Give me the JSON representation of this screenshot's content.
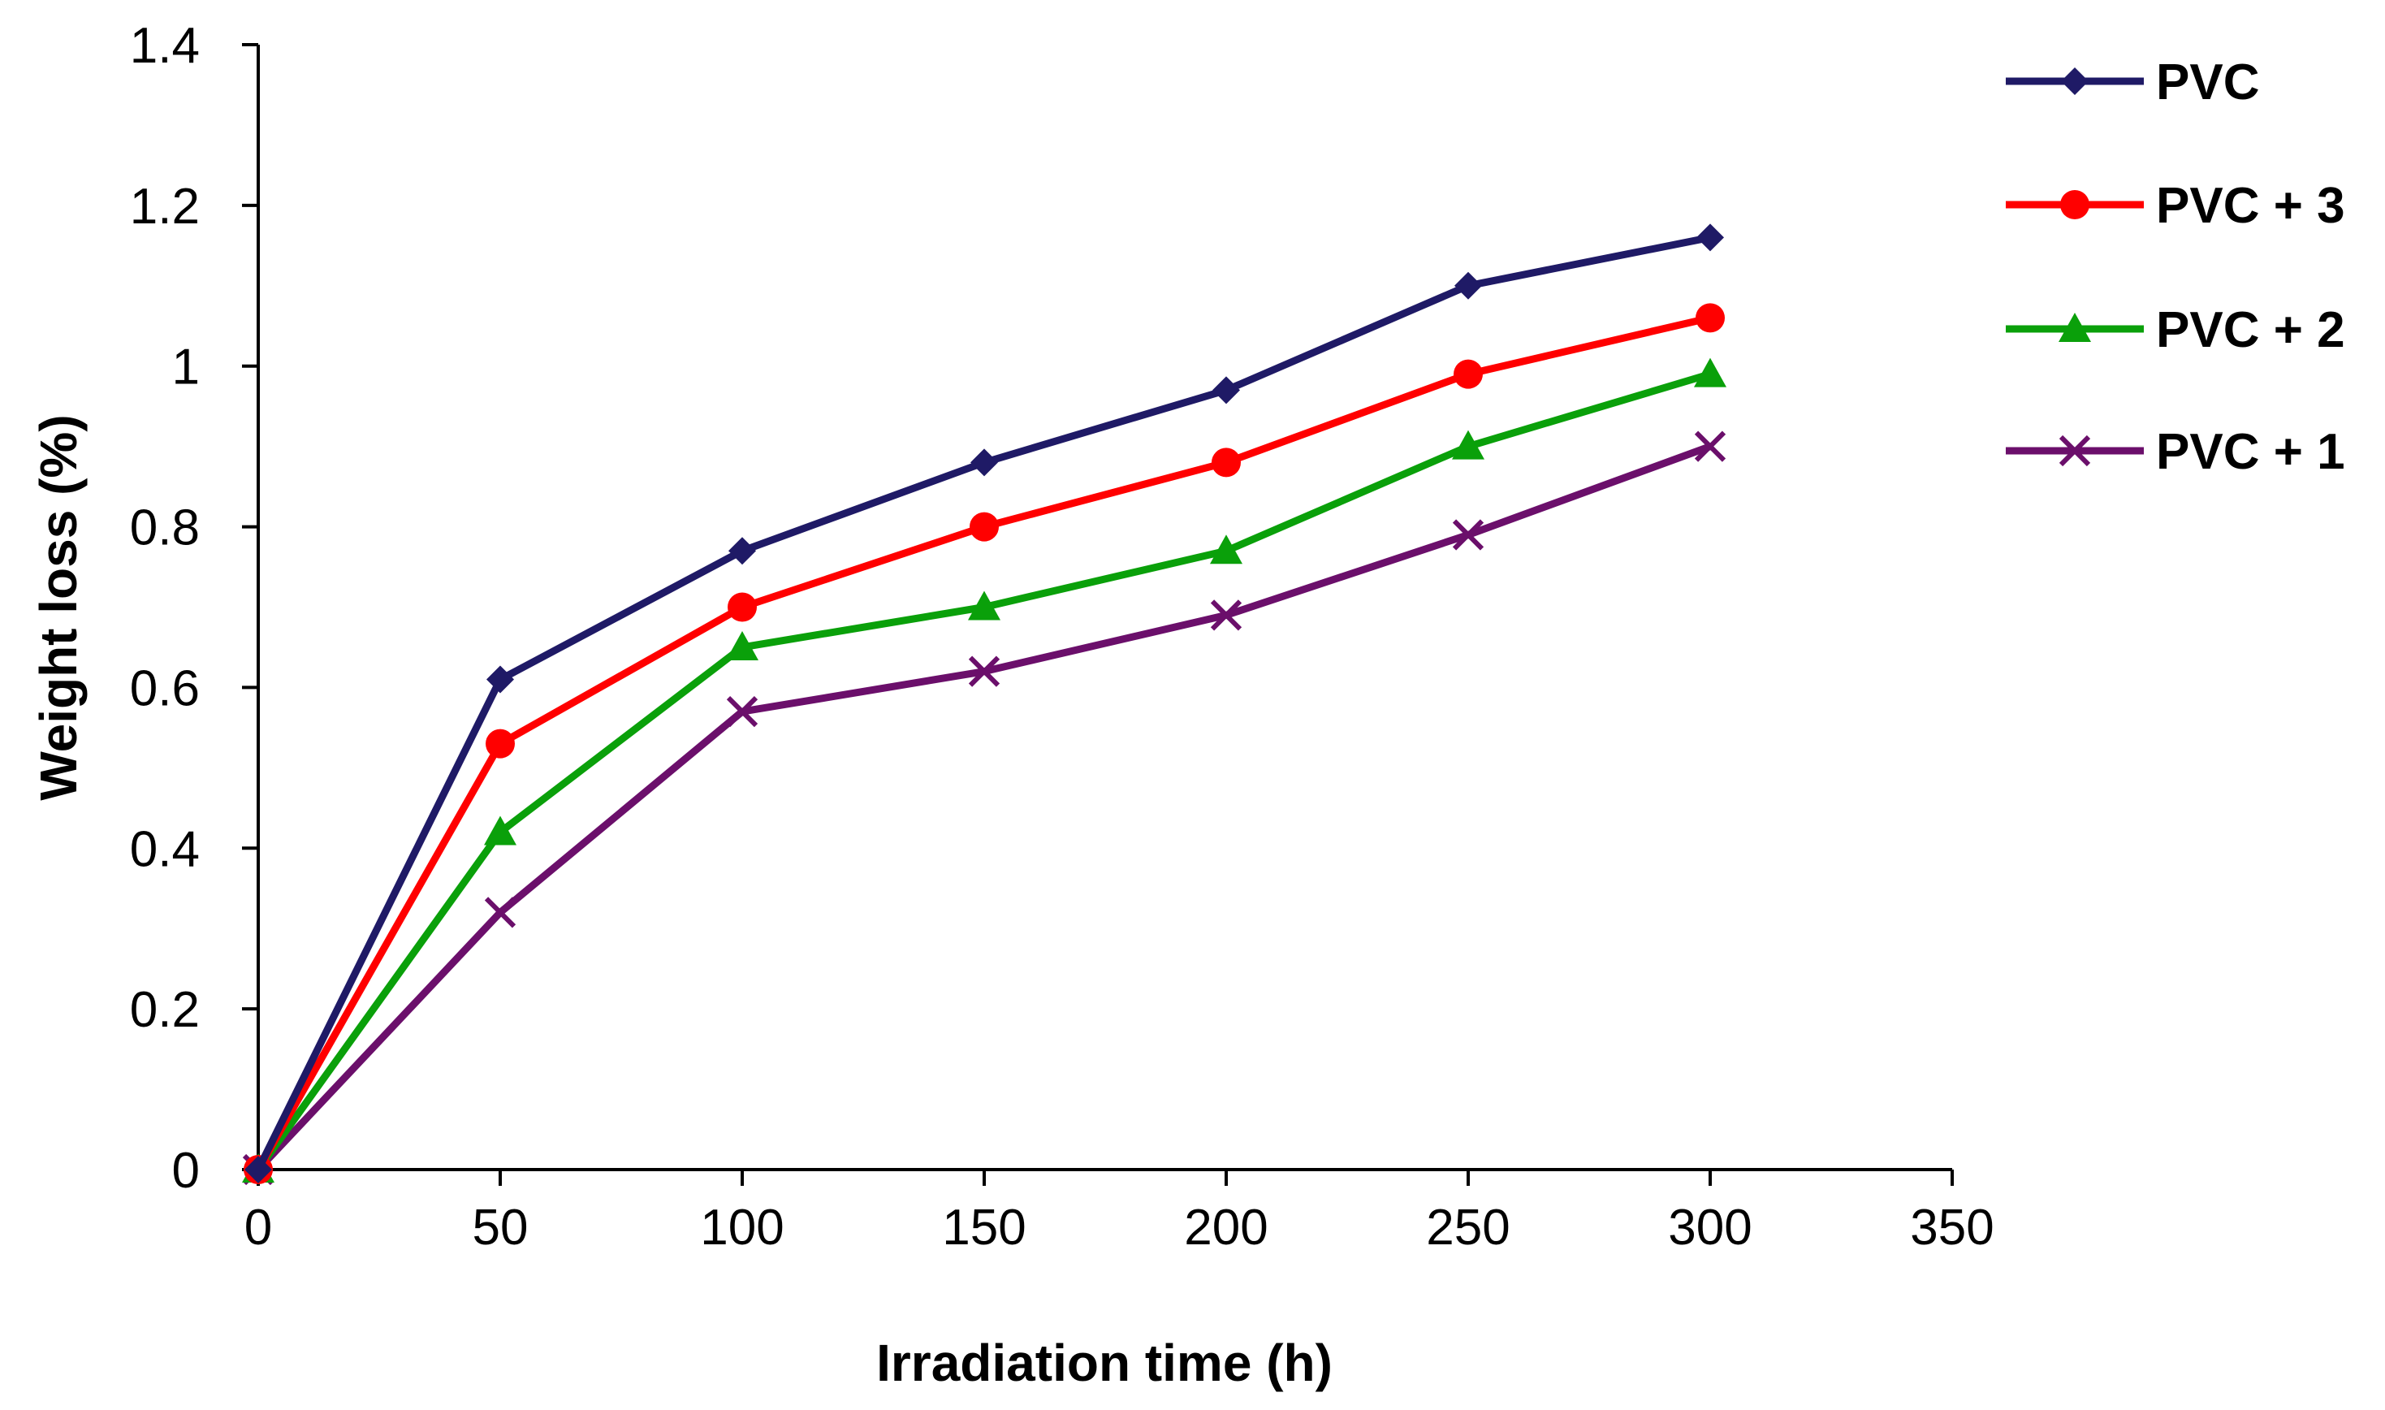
{
  "chart_data": {
    "type": "line",
    "title": "",
    "xlabel": "Irradiation time (h)",
    "ylabel": "Weight loss (%)",
    "xlim": [
      0,
      350
    ],
    "ylim": [
      0,
      1.4
    ],
    "xticks": [
      0,
      50,
      100,
      150,
      200,
      250,
      300,
      350
    ],
    "yticks": [
      0,
      0.2,
      0.4,
      0.6,
      0.8,
      1,
      1.2,
      1.4
    ],
    "xtick_labels": [
      "0",
      "50",
      "100",
      "150",
      "200",
      "250",
      "300",
      "350"
    ],
    "ytick_labels": [
      "0",
      "0.2",
      "0.4",
      "0.6",
      "0.8",
      "1",
      "1.2",
      "1.4"
    ],
    "grid": false,
    "legend_position": "right",
    "x": [
      0,
      50,
      100,
      150,
      200,
      250,
      300
    ],
    "series": [
      {
        "name": "PVC",
        "color": "#1f1a66",
        "marker": "diamond",
        "values": [
          0,
          0.61,
          0.77,
          0.88,
          0.97,
          1.1,
          1.16
        ]
      },
      {
        "name": "PVC + 3",
        "color": "#ff0000",
        "marker": "circle",
        "values": [
          0,
          0.53,
          0.7,
          0.8,
          0.88,
          0.99,
          1.06
        ]
      },
      {
        "name": "PVC + 2",
        "color": "#0aa00a",
        "marker": "triangle",
        "values": [
          0,
          0.42,
          0.65,
          0.7,
          0.77,
          0.9,
          0.99
        ]
      },
      {
        "name": "PVC + 1",
        "color": "#6b0f6b",
        "marker": "cross",
        "values": [
          0,
          0.32,
          0.57,
          0.62,
          0.69,
          0.79,
          0.9
        ]
      }
    ]
  }
}
